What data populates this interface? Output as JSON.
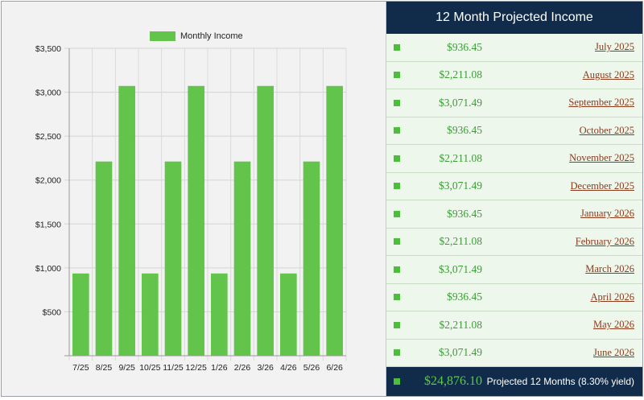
{
  "chart_data": {
    "type": "bar",
    "categories": [
      "7/25",
      "8/25",
      "9/25",
      "10/25",
      "11/25",
      "12/25",
      "1/26",
      "2/26",
      "3/26",
      "4/26",
      "5/26",
      "6/26"
    ],
    "series": [
      {
        "name": "Monthly Income",
        "values": [
          936.45,
          2211.08,
          3071.49,
          936.45,
          2211.08,
          3071.49,
          936.45,
          2211.08,
          3071.49,
          936.45,
          2211.08,
          3071.49
        ]
      }
    ],
    "ylim": [
      0,
      3500
    ],
    "yticks": [
      500,
      1000,
      1500,
      2000,
      2500,
      3000,
      3500
    ],
    "ytick_labels": [
      "$500",
      "$1,000",
      "$1,500",
      "$2,000",
      "$2,500",
      "$3,000",
      "$3,500"
    ],
    "grid": true,
    "legend": "top-center",
    "bar_color": "#62c44a"
  },
  "table": {
    "title": "12 Month Projected Income",
    "rows": [
      {
        "amount": "$936.45",
        "month": "July 2025"
      },
      {
        "amount": "$2,211.08",
        "month": "August 2025"
      },
      {
        "amount": "$3,071.49",
        "month": "September 2025"
      },
      {
        "amount": "$936.45",
        "month": "October 2025"
      },
      {
        "amount": "$2,211.08",
        "month": "November 2025"
      },
      {
        "amount": "$3,071.49",
        "month": "December 2025"
      },
      {
        "amount": "$936.45",
        "month": "January 2026"
      },
      {
        "amount": "$2,211.08",
        "month": "February 2026"
      },
      {
        "amount": "$3,071.49",
        "month": "March 2026"
      },
      {
        "amount": "$936.45",
        "month": "April 2026"
      },
      {
        "amount": "$2,211.08",
        "month": "May 2026"
      },
      {
        "amount": "$3,071.49",
        "month": "June 2026"
      }
    ],
    "total": "$24,876.10",
    "total_label": "Projected 12 Months (8.30% yield)"
  },
  "colors": {
    "header_bg": "#112c4b",
    "amount": "#3a9c35",
    "month_link": "#8a3b1c",
    "row_bg": "#eef7ec"
  },
  "icons": {
    "row_marker": "green-square-icon"
  }
}
